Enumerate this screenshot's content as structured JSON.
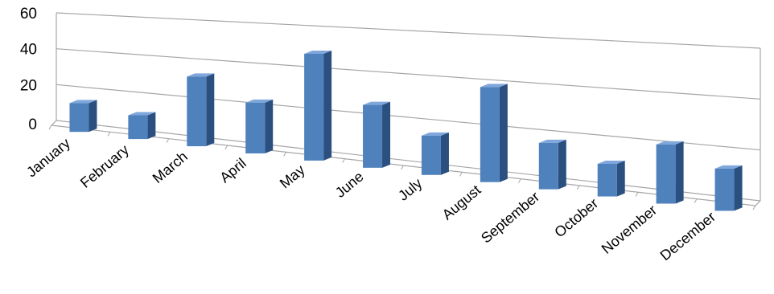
{
  "chart_data": {
    "type": "bar",
    "style": "3d-column-perspective",
    "categories": [
      "January",
      "February",
      "March",
      "April",
      "May",
      "June",
      "July",
      "August",
      "September",
      "October",
      "November",
      "December"
    ],
    "values": [
      15,
      12,
      34,
      24,
      49,
      28,
      17,
      40,
      19,
      13,
      23,
      16
    ],
    "yticks": [
      "0",
      "20",
      "40",
      "60"
    ],
    "ylim": [
      0,
      60
    ],
    "grid": true,
    "bar_color": "#4F81BD",
    "bar_side_color": "#2B5080",
    "bar_top_color": "#7FA7DC",
    "title": "",
    "xlabel": "",
    "ylabel": ""
  }
}
